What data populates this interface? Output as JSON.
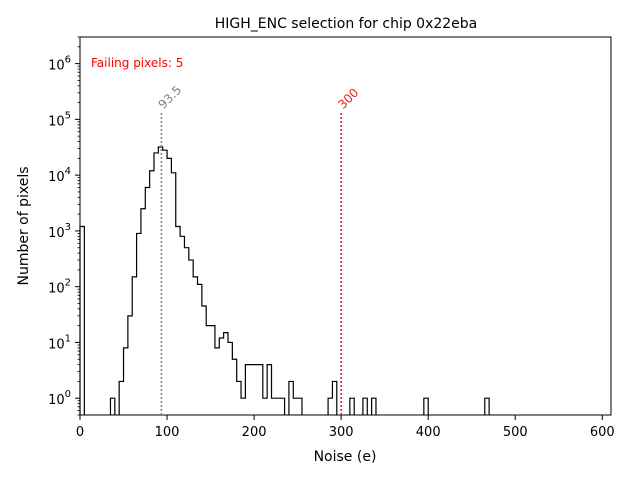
{
  "chart_data": {
    "type": "histogram-step",
    "title": "HIGH_ENC selection for chip 0x22eba",
    "xlabel": "Noise (e)",
    "ylabel": "Number of pixels",
    "xlim": [
      0,
      610
    ],
    "ylim": [
      0.5,
      3000000
    ],
    "yscale": "log",
    "x_ticks": [
      0,
      100,
      200,
      300,
      400,
      500,
      600
    ],
    "x_tick_labels": [
      "0",
      "100",
      "200",
      "300",
      "400",
      "500",
      "600"
    ],
    "y_ticks": [
      1,
      10,
      100,
      1000,
      10000,
      100000,
      1000000
    ],
    "y_tick_labels": [
      "10^0",
      "10^1",
      "10^2",
      "10^3",
      "10^4",
      "10^5",
      "10^6"
    ],
    "bin_width": 5,
    "bins": [
      [
        0,
        1200
      ],
      [
        35,
        1
      ],
      [
        45,
        2
      ],
      [
        50,
        8
      ],
      [
        55,
        30
      ],
      [
        60,
        150
      ],
      [
        65,
        900
      ],
      [
        70,
        2500
      ],
      [
        75,
        6000
      ],
      [
        80,
        12000
      ],
      [
        85,
        25000
      ],
      [
        90,
        32000
      ],
      [
        95,
        28000
      ],
      [
        100,
        20000
      ],
      [
        105,
        11000
      ],
      [
        110,
        1200
      ],
      [
        115,
        800
      ],
      [
        120,
        500
      ],
      [
        125,
        300
      ],
      [
        130,
        150
      ],
      [
        135,
        110
      ],
      [
        140,
        45
      ],
      [
        145,
        20
      ],
      [
        150,
        20
      ],
      [
        155,
        8
      ],
      [
        160,
        12
      ],
      [
        165,
        15
      ],
      [
        170,
        10
      ],
      [
        175,
        5
      ],
      [
        180,
        2
      ],
      [
        185,
        1
      ],
      [
        190,
        4
      ],
      [
        195,
        4
      ],
      [
        200,
        4
      ],
      [
        205,
        4
      ],
      [
        210,
        1
      ],
      [
        215,
        4
      ],
      [
        220,
        1
      ],
      [
        225,
        1
      ],
      [
        230,
        1
      ],
      [
        240,
        2
      ],
      [
        245,
        1
      ],
      [
        250,
        1
      ],
      [
        285,
        1
      ],
      [
        290,
        2
      ],
      [
        310,
        1
      ],
      [
        325,
        1
      ],
      [
        335,
        1
      ],
      [
        395,
        1
      ],
      [
        465,
        1
      ]
    ],
    "vlines": [
      {
        "x": 93.5,
        "label": "93.5",
        "color": "#808080"
      },
      {
        "x": 300,
        "label": "300",
        "color": "#e41a1c"
      }
    ],
    "annotation": {
      "text": "Failing pixels: 5",
      "color": "#ff0000"
    }
  }
}
